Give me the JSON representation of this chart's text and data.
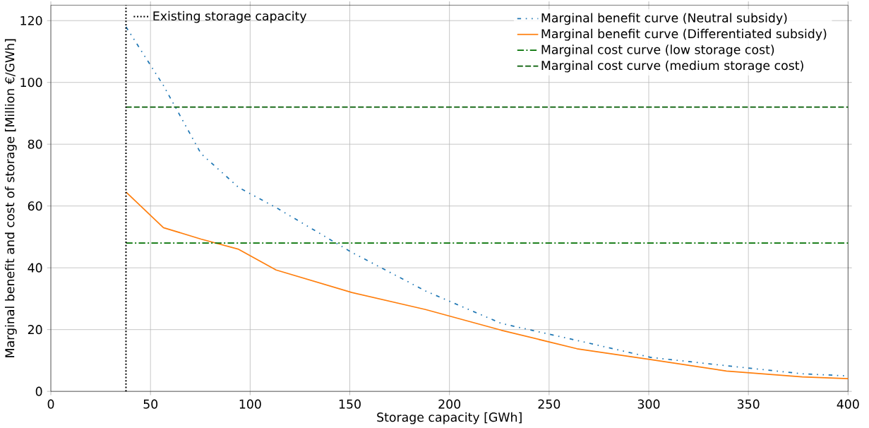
{
  "chart_data": {
    "type": "line",
    "xlabel": "Storage capacity [GWh]",
    "ylabel": "Marginal benefit and cost of storage [Million €/GWh]",
    "xlim": [
      0,
      400
    ],
    "ylim": [
      0,
      125
    ],
    "xticks": [
      0,
      50,
      100,
      150,
      200,
      250,
      300,
      350,
      400
    ],
    "yticks": [
      0,
      20,
      40,
      60,
      80,
      100,
      120
    ],
    "grid": true,
    "legend": "top right",
    "series": [
      {
        "name": "Marginal benefit curve (Neutral subsidy)",
        "color": "#1f77b4",
        "line_style": "dashdotdot",
        "x": [
          37.7,
          56.5,
          75.3,
          94.2,
          113,
          151,
          188,
          226,
          264,
          301,
          339,
          377,
          400
        ],
        "values": [
          118,
          99,
          77,
          66,
          59.5,
          45,
          32.5,
          22,
          16.5,
          11,
          8.3,
          5.7,
          5
        ]
      },
      {
        "name": "Marginal benefit curve (Differentiated subsidy)",
        "color": "#ff7f0e",
        "line_style": "solid",
        "x": [
          37.7,
          56.5,
          75.3,
          94.2,
          113,
          151,
          188,
          226,
          264,
          301,
          339,
          377,
          400
        ],
        "values": [
          64.5,
          53,
          49.3,
          46,
          39.3,
          32,
          26.5,
          19.8,
          13.8,
          10.3,
          6.6,
          4.7,
          4.1
        ]
      },
      {
        "name": "Marginal cost curve (low storage cost)",
        "color": "#007000",
        "line_style": "dashdot",
        "x": [
          37.7,
          400
        ],
        "values": [
          48,
          48
        ]
      },
      {
        "name": "Marginal cost curve (medium storage cost)",
        "color": "#005a00",
        "line_style": "dashed",
        "x": [
          37.7,
          400
        ],
        "values": [
          92,
          92
        ]
      }
    ],
    "ref_lines": [
      {
        "axis": "x",
        "value": 37.7,
        "label": "Existing storage capacity",
        "color": "#000000",
        "line_style": "dotted"
      }
    ]
  }
}
